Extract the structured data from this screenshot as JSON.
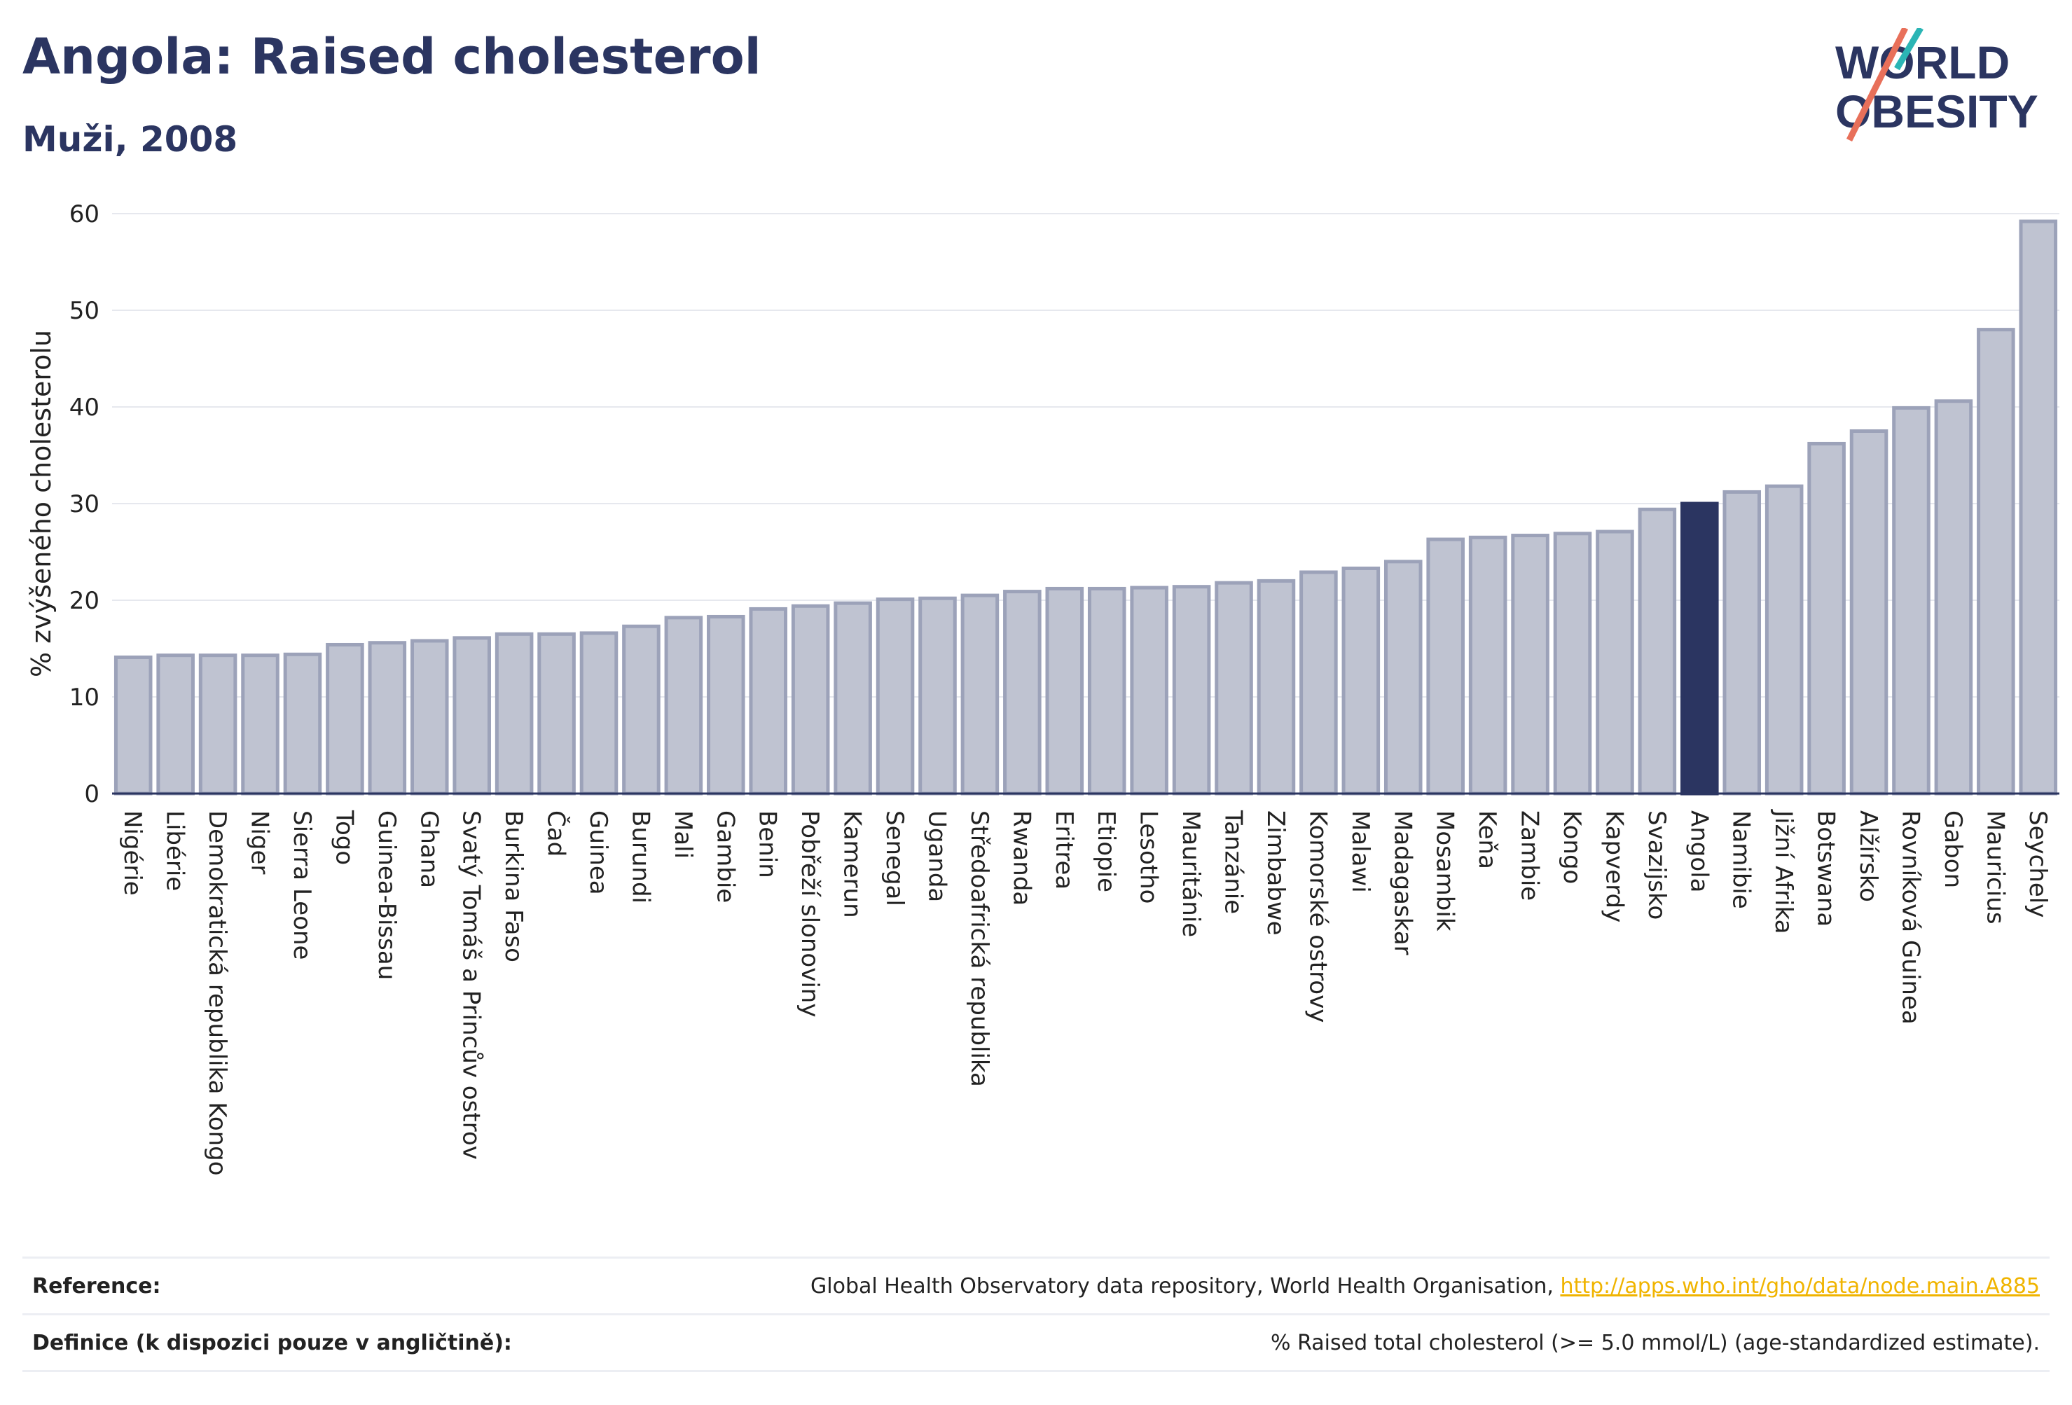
{
  "header": {
    "title": "Angola: Raised cholesterol",
    "subtitle": "Muži, 2008"
  },
  "logo": {
    "line1": "WORLD",
    "line2": "OBESITY"
  },
  "chart_data": {
    "type": "bar",
    "ylabel": "% zvýšeného cholesterolu",
    "ylim": [
      0,
      60
    ],
    "yticks": [
      0,
      10,
      20,
      30,
      40,
      50,
      60
    ],
    "grid": true,
    "highlight": "Angola",
    "colors": {
      "bar": "#bfc3d1",
      "bar_edge": "#9ca2b9",
      "highlight": "#2b3561",
      "grid": "#e6e8ee",
      "axis": "#2b3561"
    },
    "categories": [
      "Nigérie",
      "Libérie",
      "Demokratická republika Kongo",
      "Niger",
      "Sierra Leone",
      "Togo",
      "Guinea-Bissau",
      "Ghana",
      "Svatý Tomáš a Princův ostrov",
      "Burkina Faso",
      "Čad",
      "Guinea",
      "Burundi",
      "Mali",
      "Gambie",
      "Benin",
      "Pobřeží slonoviny",
      "Kamerun",
      "Senegal",
      "Uganda",
      "Středoafrická republika",
      "Rwanda",
      "Eritrea",
      "Etiopie",
      "Lesotho",
      "Mauritánie",
      "Tanzánie",
      "Zimbabwe",
      "Komorské ostrovy",
      "Malawi",
      "Madagaskar",
      "Mosambik",
      "Keňa",
      "Zambie",
      "Kongo",
      "Kapverdy",
      "Svazijsko",
      "Angola",
      "Namibie",
      "Jižní Afrika",
      "Botswana",
      "Alžírsko",
      "Rovníková Guinea",
      "Gabon",
      "Mauricius",
      "Seychely"
    ],
    "values": [
      14.1,
      14.3,
      14.3,
      14.3,
      14.4,
      15.4,
      15.6,
      15.8,
      16.1,
      16.5,
      16.5,
      16.6,
      17.3,
      18.2,
      18.3,
      19.1,
      19.4,
      19.7,
      20.1,
      20.2,
      20.5,
      20.9,
      21.2,
      21.2,
      21.3,
      21.4,
      21.8,
      22.0,
      22.9,
      23.3,
      24.0,
      26.3,
      26.5,
      26.7,
      26.9,
      27.1,
      29.4,
      30.0,
      31.2,
      31.8,
      36.2,
      37.5,
      39.9,
      40.6,
      48.0,
      59.2
    ]
  },
  "footer": {
    "reference_label": "Reference:",
    "reference_text": "Global Health Observatory data repository, World Health Organisation, ",
    "reference_link": "http://apps.who.int/gho/data/node.main.A885",
    "definition_label": "Definice (k dispozici pouze v angličtině):",
    "definition_text": "% Raised total cholesterol (>= 5.0 mmol/L) (age-standardized estimate)."
  }
}
